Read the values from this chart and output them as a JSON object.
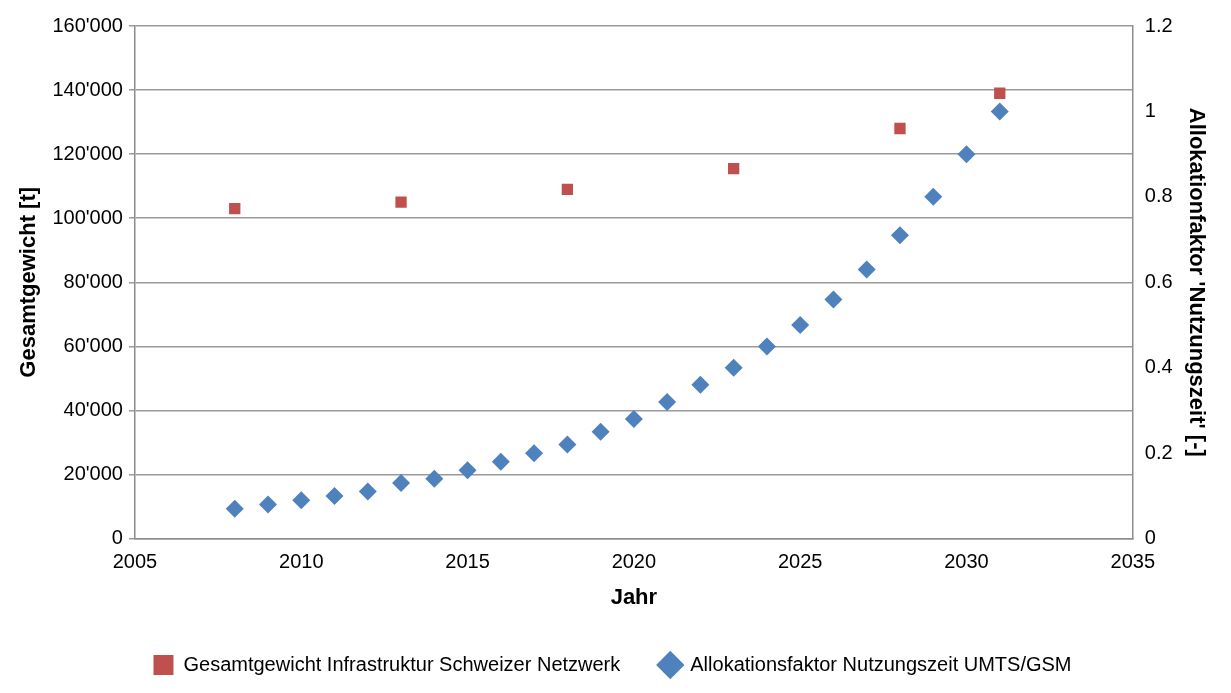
{
  "chart_data": {
    "type": "scatter",
    "xlabel": "Jahr",
    "ylabel": "Gesamtgewicht [t]",
    "y2label": "Allokationfaktor 'Nutzungszeit' [-]",
    "xlim": [
      2005,
      2035
    ],
    "xticks": [
      2005,
      2010,
      2015,
      2020,
      2025,
      2030,
      2035
    ],
    "ylim": [
      0,
      160000
    ],
    "yticks": [
      {
        "value": 0,
        "label": "0"
      },
      {
        "value": 20000,
        "label": "20'000"
      },
      {
        "value": 40000,
        "label": "40'000"
      },
      {
        "value": 60000,
        "label": "60'000"
      },
      {
        "value": 80000,
        "label": "80'000"
      },
      {
        "value": 100000,
        "label": "100'000"
      },
      {
        "value": 120000,
        "label": "120'000"
      },
      {
        "value": 140000,
        "label": "140'000"
      },
      {
        "value": 160000,
        "label": "160'000"
      }
    ],
    "y2lim": [
      0,
      1.2
    ],
    "y2ticks": [
      0,
      0.2,
      0.4,
      0.6,
      0.8,
      1,
      1.2
    ],
    "grid": "y",
    "legend": "bottom",
    "series": [
      {
        "name": "Gesamtgewicht Infrastruktur Schweizer Netzwerk",
        "type": "scatter",
        "marker": "square",
        "color": "#c0504d",
        "x": [
          2008,
          2013,
          2018,
          2023,
          2028,
          2031
        ],
        "values": [
          103000,
          105000,
          109000,
          115500,
          128000,
          139000
        ]
      },
      {
        "name": "Allokationsfaktor Nutzungszeit UMTS/GSM",
        "type": "scatter",
        "marker": "diamond",
        "axis": "y2",
        "color": "#4f81bd",
        "x": [
          2008,
          2009,
          2010,
          2011,
          2012,
          2013,
          2014,
          2015,
          2016,
          2017,
          2018,
          2019,
          2020,
          2021,
          2022,
          2023,
          2024,
          2025,
          2026,
          2027,
          2028,
          2029,
          2030,
          2031
        ],
        "values": [
          0.07,
          0.08,
          0.09,
          0.1,
          0.11,
          0.13,
          0.14,
          0.16,
          0.18,
          0.2,
          0.22,
          0.25,
          0.28,
          0.32,
          0.36,
          0.4,
          0.45,
          0.5,
          0.56,
          0.63,
          0.71,
          0.8,
          0.9,
          1
        ]
      }
    ]
  }
}
